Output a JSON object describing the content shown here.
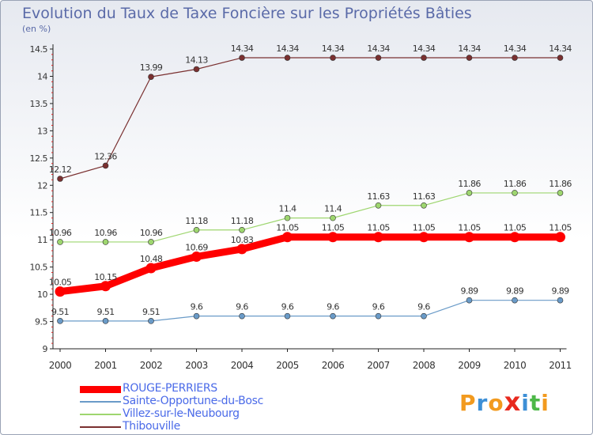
{
  "header": {
    "title": "Evolution du Taux de Taxe Foncière sur les Propriétés Bâties",
    "unit": "(en %)"
  },
  "brand": {
    "name": "Proxiti",
    "letters": [
      "P",
      "r",
      "o",
      "x",
      "i",
      "t",
      "i"
    ],
    "colors": [
      "#f29a1e",
      "#3d8fd6",
      "#f29a1e",
      "#e8291e",
      "#3d8fd6",
      "#4db848",
      "#f29a1e"
    ]
  },
  "chart_data": {
    "type": "line",
    "title": "Evolution du Taux de Taxe Foncière sur les Propriétés Bâties",
    "ylabel": "(en %)",
    "xlabel": "",
    "x": [
      "2000",
      "2001",
      "2002",
      "2003",
      "2004",
      "2005",
      "2006",
      "2007",
      "2008",
      "2009",
      "2010",
      "2011"
    ],
    "ylim": [
      9,
      14.5
    ],
    "yticks": [
      "9",
      "9.5",
      "10",
      "10.5",
      "11",
      "11.5",
      "12",
      "12.5",
      "13",
      "13.5",
      "14",
      "14.5"
    ],
    "grid": false,
    "legend_position": "bottom-left",
    "series": [
      {
        "name": "ROUGE-PERRIERS",
        "color": "#ff0000",
        "emphasis": true,
        "values": [
          10.05,
          10.15,
          10.48,
          10.69,
          10.83,
          11.05,
          11.05,
          11.05,
          11.05,
          11.05,
          11.05,
          11.05
        ],
        "labels": [
          "10.05",
          "10.15",
          "10.48",
          "10.69",
          "10.83",
          "11.05",
          "11.05",
          "11.05",
          "11.05",
          "11.05",
          "11.05",
          "11.05"
        ]
      },
      {
        "name": "Sainte-Opportune-du-Bosc",
        "color": "#6a9bc8",
        "values": [
          9.51,
          9.51,
          9.51,
          9.6,
          9.6,
          9.6,
          9.6,
          9.6,
          9.6,
          9.89,
          9.89,
          9.89
        ],
        "labels": [
          "9.51",
          "9.51",
          "9.51",
          "9.6",
          "9.6",
          "9.6",
          "9.6",
          "9.6",
          "9.6",
          "9.89",
          "9.89",
          "9.89"
        ]
      },
      {
        "name": "Villez-sur-le-Neubourg",
        "color": "#9ed66f",
        "values": [
          10.96,
          10.96,
          10.96,
          11.18,
          11.18,
          11.4,
          11.4,
          11.63,
          11.63,
          11.86,
          11.86,
          11.86
        ],
        "labels": [
          "10.96",
          "10.96",
          "10.96",
          "11.18",
          "11.18",
          "11.4",
          "11.4",
          "11.63",
          "11.63",
          "11.86",
          "11.86",
          "11.86"
        ]
      },
      {
        "name": "Thibouville",
        "color": "#7a3030",
        "values": [
          12.12,
          12.36,
          13.99,
          14.13,
          14.34,
          14.34,
          14.34,
          14.34,
          14.34,
          14.34,
          14.34,
          14.34
        ],
        "labels": [
          "12.12",
          "12.36",
          "13.99",
          "14.13",
          "14.34",
          "14.34",
          "14.34",
          "14.34",
          "14.34",
          "14.34",
          "14.34",
          "14.34"
        ]
      }
    ]
  }
}
